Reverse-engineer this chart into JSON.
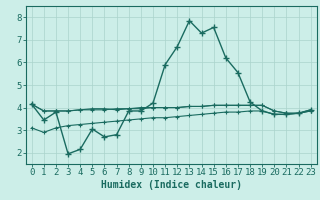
{
  "xlabel": "Humidex (Indice chaleur)",
  "background_color": "#cceee8",
  "grid_color": "#aad4cc",
  "line_color": "#1a6b60",
  "x_data": [
    0,
    1,
    2,
    3,
    4,
    5,
    6,
    7,
    8,
    9,
    10,
    11,
    12,
    13,
    14,
    15,
    16,
    17,
    18,
    19,
    20,
    21,
    22,
    23
  ],
  "line1_y": [
    4.15,
    3.45,
    3.8,
    1.95,
    2.15,
    3.05,
    2.7,
    2.8,
    3.85,
    3.85,
    4.2,
    5.9,
    6.7,
    7.85,
    7.3,
    7.55,
    6.2,
    5.55,
    4.25,
    3.85,
    3.7,
    3.7,
    3.75,
    3.9
  ],
  "line2_y": [
    4.15,
    3.85,
    3.85,
    3.85,
    3.9,
    3.9,
    3.9,
    3.95,
    3.95,
    3.95,
    4.0,
    4.0,
    4.0,
    4.05,
    4.05,
    4.1,
    4.1,
    4.1,
    4.1,
    4.1,
    3.85,
    3.75,
    3.75,
    3.85
  ],
  "line3_y": [
    4.15,
    3.85,
    3.85,
    3.85,
    3.9,
    3.95,
    3.95,
    3.9,
    3.95,
    4.0,
    4.0,
    4.0,
    4.0,
    4.05,
    4.05,
    4.1,
    4.1,
    4.1,
    4.1,
    4.1,
    3.85,
    3.75,
    3.75,
    3.85
  ],
  "line4_y": [
    3.1,
    2.9,
    3.1,
    3.2,
    3.25,
    3.3,
    3.35,
    3.4,
    3.45,
    3.5,
    3.55,
    3.55,
    3.6,
    3.65,
    3.7,
    3.75,
    3.8,
    3.8,
    3.85,
    3.85,
    3.7,
    3.7,
    3.75,
    3.9
  ],
  "ylim": [
    1.5,
    8.5
  ],
  "xlim": [
    -0.5,
    23.5
  ],
  "yticks": [
    2,
    3,
    4,
    5,
    6,
    7,
    8
  ],
  "xticks": [
    0,
    1,
    2,
    3,
    4,
    5,
    6,
    7,
    8,
    9,
    10,
    11,
    12,
    13,
    14,
    15,
    16,
    17,
    18,
    19,
    20,
    21,
    22,
    23
  ],
  "fontsize_xlabel": 7,
  "fontsize_ticks": 6.5
}
